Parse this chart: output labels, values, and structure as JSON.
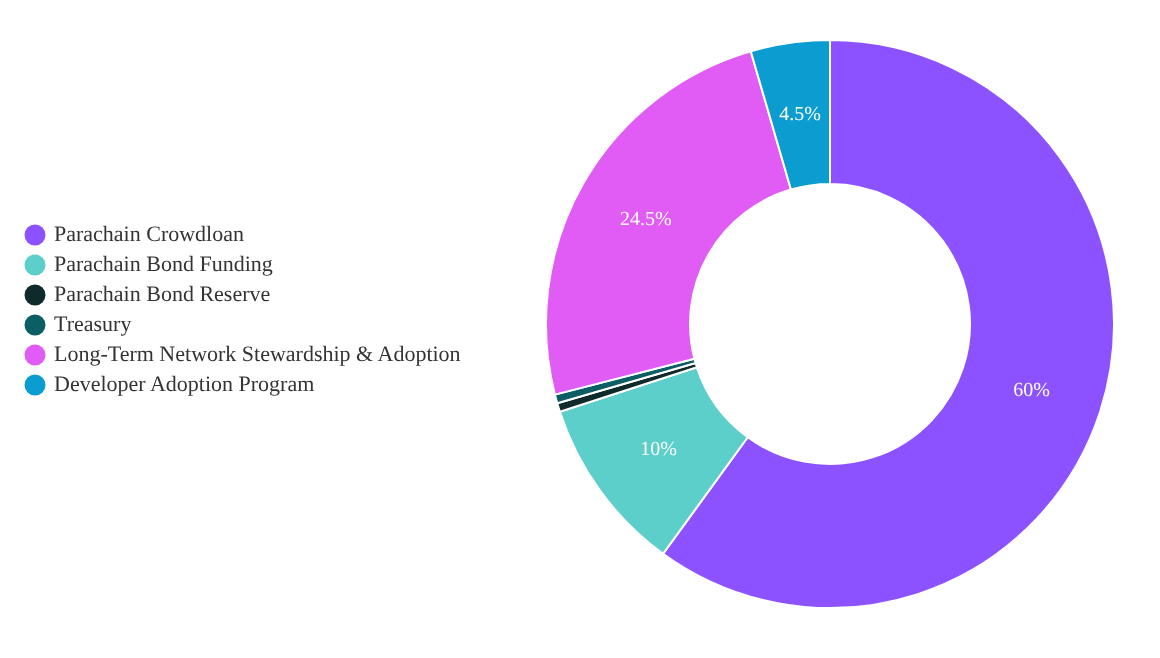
{
  "chart_data": {
    "type": "donut",
    "categories": [
      "Parachain Crowdloan",
      "Parachain Bond Funding",
      "Parachain Bond Reserve",
      "Treasury",
      "Long-Term Network Stewardship & Adoption",
      "Developer Adoption Program"
    ],
    "values": [
      60,
      10,
      0.5,
      0.5,
      24.5,
      4.5
    ],
    "colors": [
      "#8c52ff",
      "#5ccfcb",
      "#0e2a2a",
      "#0b5e63",
      "#e15bf5",
      "#0b9dd0"
    ],
    "value_labels": [
      "60%",
      "10%",
      null,
      null,
      "24.5%",
      "4.5%"
    ],
    "legend": "left"
  }
}
